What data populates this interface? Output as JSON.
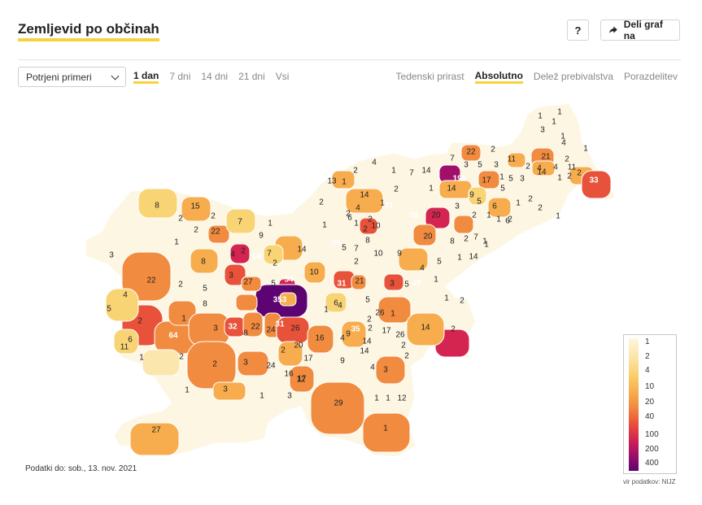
{
  "header": {
    "title": "Zemljevid po občinah",
    "help_label": "?",
    "share_label": "Deli graf na",
    "share_icon": "share-arrow-icon"
  },
  "controls": {
    "metric_select": "Potrjeni primeri",
    "periods": [
      "1 dan",
      "7 dni",
      "14 dni",
      "21 dni",
      "Vsi"
    ],
    "active_period": "1 dan",
    "modes": [
      "Tedenski prirast",
      "Absolutno",
      "Delež prebivalstva",
      "Porazdelitev"
    ],
    "active_mode": "Absolutno"
  },
  "map": {
    "colors": {
      "c1": "#fdf6e3",
      "c2": "#fbe6ae",
      "c4": "#f9d475",
      "c10": "#f7ad4e",
      "c20": "#f18b40",
      "c40": "#e8523a",
      "c100": "#d42450",
      "c200": "#a0106a",
      "c400": "#5e0472"
    },
    "labels": [
      "1",
      "1",
      "1",
      "3",
      "1",
      "4",
      "1",
      "21",
      "2",
      "4",
      "11",
      "2",
      "33",
      "22",
      "2",
      "7",
      "3",
      "5",
      "11",
      "3",
      "196",
      "17",
      "1",
      "5",
      "3",
      "5",
      "14",
      "2",
      "4",
      "1",
      "2",
      "1",
      "2",
      "6",
      "13",
      "1",
      "2",
      "4",
      "1",
      "7",
      "14",
      "1",
      "2",
      "14",
      "9",
      "5",
      "14",
      "2",
      "1",
      "1",
      "2",
      "2",
      "1",
      "6",
      "41",
      "10",
      "56",
      "20",
      "3",
      "1",
      "2",
      "2",
      "1",
      "4",
      "2",
      "6",
      "1",
      "8",
      "7",
      "5",
      "2",
      "20",
      "8",
      "2",
      "7",
      "1",
      "1",
      "8",
      "15",
      "2",
      "2",
      "22",
      "2",
      "7",
      "1",
      "1",
      "3",
      "4",
      "59",
      "7",
      "9",
      "2",
      "8",
      "3",
      "2",
      "14",
      "39",
      "10",
      "2",
      "9",
      "4",
      "5",
      "1",
      "14",
      "5",
      "27",
      "5",
      "54",
      "10",
      "10",
      "31",
      "21",
      "3",
      "38",
      "1",
      "1",
      "2",
      "22",
      "2",
      "5",
      "8",
      "353",
      "1",
      "6",
      "4",
      "5",
      "26",
      "1",
      "2",
      "2",
      "17",
      "5",
      "4",
      "2",
      "1",
      "3",
      "32",
      "22",
      "24",
      "31",
      "26",
      "16",
      "9",
      "35",
      "26",
      "14",
      "2",
      "6",
      "11",
      "64",
      "8",
      "2",
      "20",
      "4",
      "14",
      "14",
      "2",
      "1",
      "2",
      "2",
      "3",
      "24",
      "17",
      "9",
      "4",
      "3",
      "2",
      "17",
      "16",
      "12",
      "1",
      "3",
      "1",
      "3",
      "29",
      "1",
      "1",
      "12",
      "27",
      "1"
    ],
    "legend": [
      "1",
      "2",
      "4",
      "10",
      "20",
      "40",
      "100",
      "200",
      "400"
    ],
    "source": "vir podatkov: NIJZ"
  },
  "footer": {
    "data_date": "Podatki do: sob., 13. nov. 2021"
  }
}
